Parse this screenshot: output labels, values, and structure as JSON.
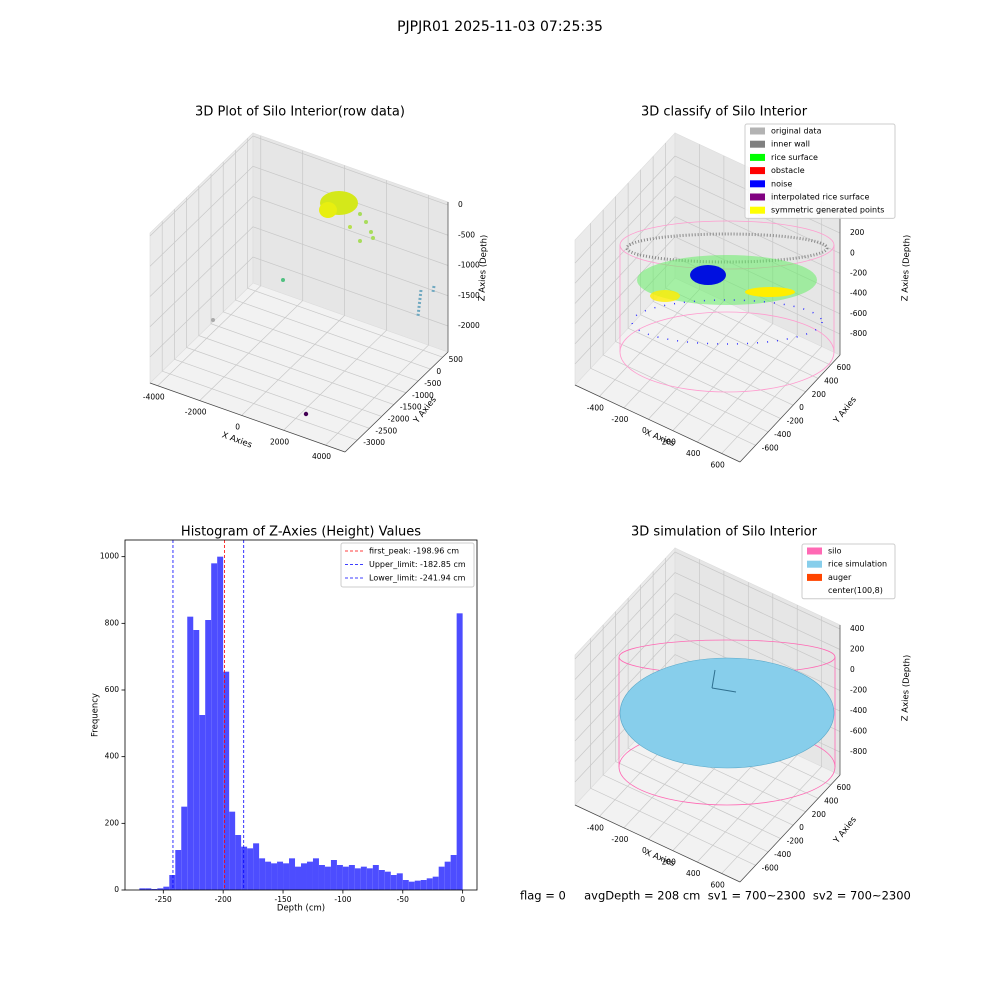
{
  "title": "PJPJR01 2025-11-03 07:25:35",
  "footer": "flag = 0     avgDepth = 208 cm  sv1 = 700~2300  sv2 = 700~2300",
  "chart_data": [
    {
      "type": "scatter3d",
      "title": "3D Plot of Silo Interior(row data)",
      "xlabel": "X Axies",
      "ylabel": "Y Axies",
      "zlabel": "Z Axies (Depth)",
      "xlim": [
        -4370,
        4930
      ],
      "ylim": [
        -3500,
        720
      ],
      "zlim": [
        -2430,
        50
      ],
      "xticks": [
        -4000,
        -2000,
        0,
        2000,
        4000
      ],
      "yticks": [
        500,
        0,
        -500,
        -1000,
        -1500,
        -2000,
        -2500,
        -3000
      ],
      "zticks": [
        0,
        -500,
        -1000,
        -1500,
        -2000
      ]
    },
    {
      "type": "scatter3d",
      "title": "3D classify of Silo Interior",
      "xlabel": "X Axies",
      "ylabel": "Y Axies",
      "zlabel": "Z Axies (Depth)",
      "xlim": [
        -600,
        750
      ],
      "ylim": [
        -850,
        750
      ],
      "zlim": [
        -1008,
        429
      ],
      "xticks": [
        -400,
        -200,
        0,
        200,
        400,
        600
      ],
      "yticks": [
        600,
        400,
        200,
        0,
        -200,
        -400,
        -600
      ],
      "zticks": [
        200,
        0,
        -200,
        -400,
        -600,
        -800
      ],
      "legend": [
        {
          "name": "original data",
          "color": "#b3b3b3"
        },
        {
          "name": "inner wall",
          "color": "#808080"
        },
        {
          "name": "rice surface",
          "color": "#00ff00"
        },
        {
          "name": "obstacle",
          "color": "#ff0000"
        },
        {
          "name": "noise",
          "color": "#0000ff"
        },
        {
          "name": "interpolated rice surface",
          "color": "#800080"
        },
        {
          "name": "symmetric generated points",
          "color": "#ffff00"
        }
      ]
    },
    {
      "type": "histogram",
      "title": "Histogram of Z-Axies (Height) Values",
      "xlabel": "Depth (cm)",
      "ylabel": "Frequency",
      "color": "#4d4dff",
      "bins": [
        -270,
        -265,
        -260,
        -255,
        -250,
        -245,
        -240,
        -235,
        -230,
        -225,
        -220,
        -215,
        -210,
        -205,
        -200,
        -195,
        -190,
        -185,
        -180,
        -175,
        -170,
        -165,
        -160,
        -155,
        -150,
        -145,
        -140,
        -135,
        -130,
        -125,
        -120,
        -115,
        -110,
        -105,
        -100,
        -95,
        -90,
        -85,
        -80,
        -75,
        -70,
        -65,
        -60,
        -55,
        -50,
        -45,
        -40,
        -35,
        -30,
        -25,
        -20,
        -15,
        -10,
        -5,
        0
      ],
      "values": [
        5,
        5,
        3,
        5,
        10,
        45,
        120,
        250,
        820,
        780,
        525,
        810,
        980,
        1000,
        655,
        235,
        165,
        130,
        125,
        140,
        95,
        85,
        80,
        85,
        80,
        95,
        70,
        80,
        85,
        95,
        75,
        70,
        90,
        75,
        70,
        75,
        65,
        70,
        65,
        75,
        60,
        55,
        45,
        50,
        30,
        25,
        28,
        30,
        35,
        40,
        70,
        85,
        105,
        830
      ],
      "xlim": [
        -282,
        12
      ],
      "ylim": [
        0,
        1050
      ],
      "xticks": [
        -250,
        -200,
        -150,
        -100,
        -50,
        0
      ],
      "yticks": [
        0,
        200,
        400,
        600,
        800,
        1000
      ],
      "vlines": [
        {
          "value": -198.96,
          "label": "first_peak: -198.96 cm",
          "color": "#ff0000"
        },
        {
          "value": -182.85,
          "label": "Upper_limit: -182.85 cm",
          "color": "#0000ff"
        },
        {
          "value": -241.94,
          "label": "Lower_limit: -241.94 cm",
          "color": "#0000ff"
        }
      ]
    },
    {
      "type": "surface3d",
      "title": "3D simulation of Silo Interior",
      "xlabel": "X Axies",
      "ylabel": "Y Axies",
      "zlabel": "Z Axies (Depth)",
      "xlim": [
        -600,
        750
      ],
      "ylim": [
        -850,
        750
      ],
      "zlim": [
        -1024,
        439
      ],
      "xticks": [
        -400,
        -200,
        0,
        200,
        400,
        600
      ],
      "yticks": [
        600,
        400,
        200,
        0,
        -200,
        -400,
        -600
      ],
      "zticks": [
        400,
        200,
        0,
        -200,
        -400,
        -600,
        -800
      ],
      "legend": [
        {
          "name": "silo",
          "color": "#ff69b4"
        },
        {
          "name": "rice simulation",
          "color": "#87ceeb"
        },
        {
          "name": "auger",
          "color": "#ff4500"
        },
        {
          "name": "center(100,8)",
          "color": "#ffffff"
        }
      ]
    }
  ]
}
